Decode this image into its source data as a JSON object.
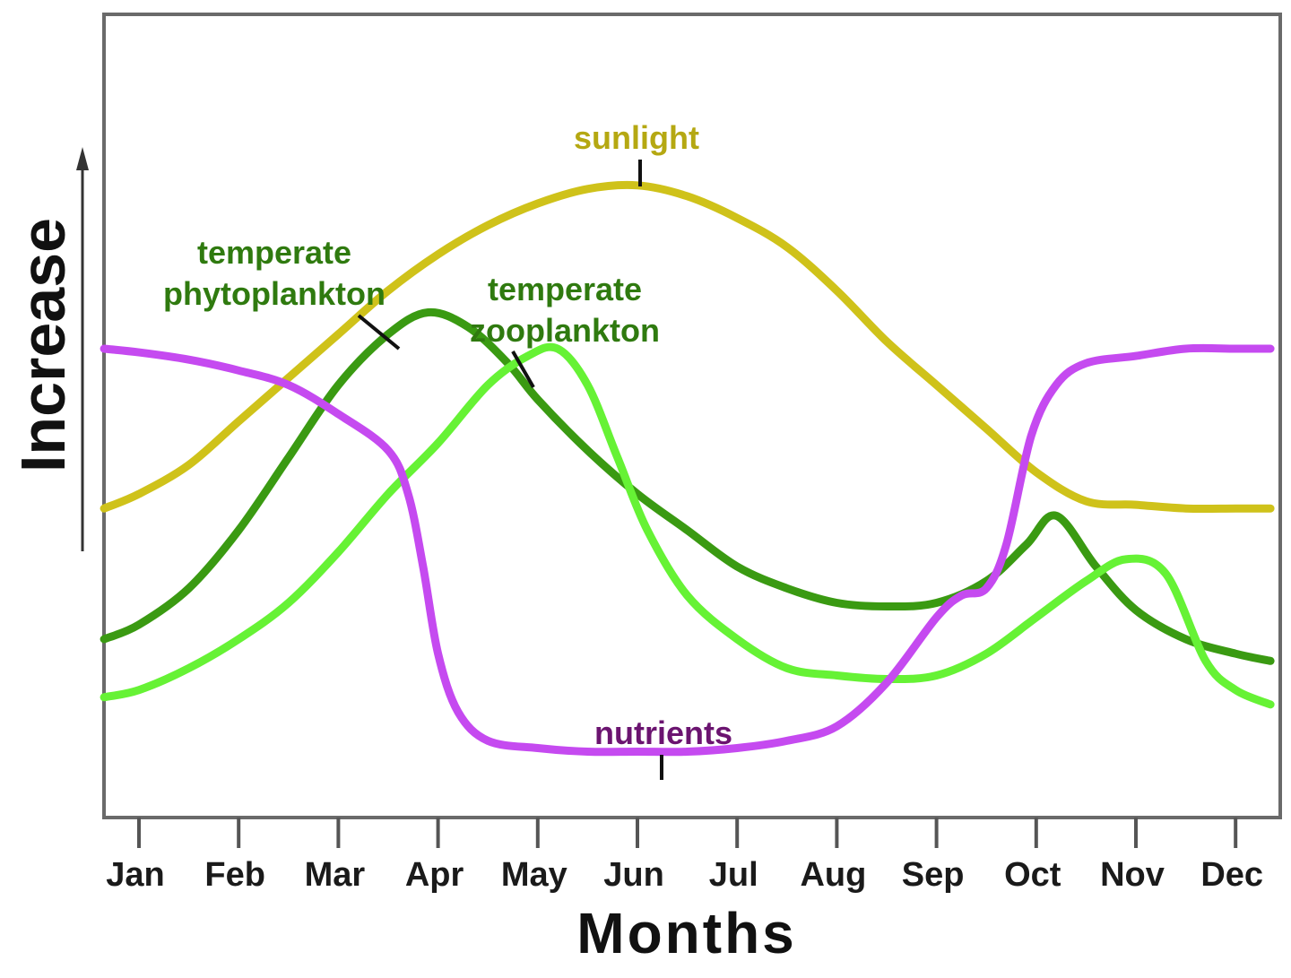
{
  "chart_data": {
    "type": "line",
    "title": "",
    "xlabel": "Months",
    "ylabel": "Increase",
    "categories": [
      "Jan",
      "Feb",
      "Mar",
      "Apr",
      "May",
      "Jun",
      "Jul",
      "Aug",
      "Sep",
      "Oct",
      "Nov",
      "Dec"
    ],
    "x_range": [
      0.65,
      12.35
    ],
    "ylim": [
      0,
      100
    ],
    "grid": false,
    "legend": "none (curves labeled directly)",
    "series": [
      {
        "name": "sunlight",
        "label_lines": [
          "sunlight"
        ],
        "color": "#cfc21a",
        "label_color": "#b5a812",
        "x": [
          0.65,
          1.0,
          1.5,
          2.0,
          2.5,
          3.0,
          3.5,
          4.0,
          4.5,
          5.0,
          5.5,
          6.0,
          6.5,
          7.0,
          7.5,
          8.0,
          8.5,
          9.0,
          9.5,
          10.0,
          10.5,
          11.0,
          11.5,
          12.0,
          12.35
        ],
        "values": [
          38,
          40,
          44,
          50,
          56,
          62,
          68,
          73,
          77,
          80,
          82,
          82.5,
          81,
          78,
          74,
          68,
          61,
          55,
          49,
          43,
          39,
          38.5,
          38,
          38,
          38
        ]
      },
      {
        "name": "temperate phytoplankton",
        "label_lines": [
          "temperate",
          "phytoplankton"
        ],
        "color": "#3a9a12",
        "label_color": "#2f7a0f",
        "x": [
          0.65,
          1.0,
          1.5,
          2.0,
          2.5,
          3.0,
          3.5,
          3.9,
          4.3,
          4.7,
          5.0,
          5.5,
          6.0,
          6.5,
          7.0,
          7.5,
          8.0,
          8.5,
          9.0,
          9.5,
          9.9,
          10.2,
          10.6,
          11.0,
          11.5,
          12.0,
          12.35
        ],
        "values": [
          20,
          22,
          27,
          35,
          45,
          55,
          62,
          65,
          63,
          58,
          53,
          46,
          40,
          35,
          30,
          27,
          25,
          24.5,
          25,
          28,
          33,
          37,
          30,
          24,
          20,
          18,
          17
        ]
      },
      {
        "name": "temperate zooplankton",
        "label_lines": [
          "temperate",
          "zooplankton"
        ],
        "color": "#66f235",
        "label_color": "#2f7a0f",
        "x": [
          0.65,
          1.0,
          1.5,
          2.0,
          2.5,
          3.0,
          3.5,
          4.0,
          4.5,
          4.9,
          5.2,
          5.5,
          5.8,
          6.1,
          6.5,
          7.0,
          7.5,
          8.0,
          8.5,
          9.0,
          9.5,
          10.0,
          10.5,
          10.9,
          11.3,
          11.7,
          12.0,
          12.35
        ],
        "values": [
          12,
          13,
          16,
          20,
          25,
          32,
          40,
          47,
          55,
          59,
          60,
          55,
          45,
          35,
          26,
          20,
          16,
          15,
          14.5,
          15,
          18,
          23,
          28,
          31,
          29,
          17,
          13,
          11
        ]
      },
      {
        "name": "nutrients",
        "label_lines": [
          "nutrients"
        ],
        "color": "#c54af0",
        "label_color": "#6b1470",
        "x": [
          0.65,
          1.0,
          1.5,
          2.0,
          2.5,
          3.0,
          3.5,
          3.7,
          3.85,
          4.0,
          4.2,
          4.5,
          5.0,
          5.5,
          6.0,
          6.5,
          7.0,
          7.5,
          8.0,
          8.5,
          9.0,
          9.25,
          9.5,
          9.7,
          9.95,
          10.2,
          10.5,
          11.0,
          11.5,
          12.0,
          12.35
        ],
        "values": [
          60,
          59.5,
          58.5,
          57,
          55,
          51,
          46,
          40,
          30,
          18,
          10,
          6,
          5,
          4.5,
          4.5,
          4.5,
          5,
          6,
          8,
          14,
          23,
          26,
          27,
          33,
          48,
          55,
          58,
          59,
          60,
          60,
          60
        ]
      }
    ]
  }
}
